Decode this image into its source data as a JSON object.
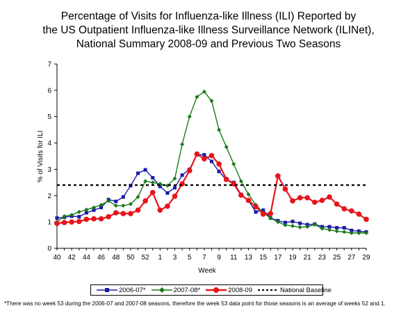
{
  "title_lines": [
    "Percentage of Visits for Influenza-like Illness (ILI) Reported by",
    "the US Outpatient Influenza-like Illness Surveillance Network (ILINet),",
    "National Summary 2008-09 and Previous Two Seasons"
  ],
  "footnote": "*There was no week 53 during the 2006-07 and 2007-08 seasons, therefore the week 53 data point for those seasons is an average of weeks 52 and 1.",
  "chart_data": {
    "type": "line",
    "title": "Percentage of Visits for Influenza-like Illness (ILI) Reported by the US Outpatient Influenza-like Illness Surveillance Network (ILINet), National Summary 2008-09 and Previous Two Seasons",
    "xlabel": "Week",
    "ylabel": "% of Visits for ILI",
    "ylim": [
      0,
      7
    ],
    "yticks": [
      0,
      1,
      2,
      3,
      4,
      5,
      6,
      7
    ],
    "x": [
      40,
      41,
      42,
      43,
      44,
      45,
      46,
      47,
      48,
      49,
      50,
      51,
      52,
      53,
      1,
      2,
      3,
      4,
      5,
      6,
      7,
      8,
      9,
      10,
      11,
      12,
      13,
      14,
      15,
      16,
      17,
      18,
      19,
      20,
      21,
      22,
      23,
      24,
      25,
      26,
      27,
      28,
      29
    ],
    "xtick_labels": [
      "40",
      "42",
      "44",
      "46",
      "48",
      "50",
      "52",
      "1",
      "3",
      "5",
      "7",
      "9",
      "11",
      "13",
      "15",
      "17",
      "19",
      "21",
      "23",
      "25",
      "27",
      "29"
    ],
    "grid": false,
    "legend_position": "bottom",
    "series": [
      {
        "name": "2006-07*",
        "color": "#1a1aa6",
        "marker": "square",
        "values": [
          1.15,
          1.18,
          1.22,
          1.2,
          1.35,
          1.45,
          1.55,
          1.85,
          1.78,
          1.95,
          2.38,
          2.85,
          2.98,
          2.68,
          2.35,
          2.1,
          2.3,
          2.78,
          3.0,
          3.55,
          3.55,
          3.3,
          2.92,
          2.6,
          2.5,
          2.05,
          1.82,
          1.38,
          1.45,
          1.15,
          1.05,
          0.98,
          1.02,
          0.95,
          0.9,
          0.92,
          0.82,
          0.82,
          0.78,
          0.78,
          0.68,
          0.65,
          0.62
        ]
      },
      {
        "name": "2007-08*",
        "color": "#1a7a1a",
        "marker": "diamond",
        "values": [
          1.0,
          1.22,
          1.27,
          1.38,
          1.47,
          1.55,
          1.65,
          1.8,
          1.62,
          1.62,
          1.68,
          1.95,
          2.55,
          2.5,
          2.45,
          2.38,
          2.65,
          3.95,
          5.0,
          5.75,
          5.95,
          5.6,
          4.5,
          3.85,
          3.2,
          2.55,
          2.05,
          1.65,
          1.35,
          1.15,
          1.0,
          0.88,
          0.85,
          0.8,
          0.82,
          0.9,
          0.75,
          0.7,
          0.65,
          0.62,
          0.58,
          0.58,
          0.58
        ]
      },
      {
        "name": "2008-09",
        "color": "#e8141a",
        "marker": "circle",
        "values": [
          0.95,
          0.98,
          1.0,
          1.02,
          1.1,
          1.12,
          1.12,
          1.2,
          1.35,
          1.32,
          1.32,
          1.45,
          1.8,
          2.12,
          1.45,
          1.6,
          1.98,
          2.45,
          2.95,
          3.58,
          3.4,
          3.52,
          3.2,
          2.62,
          2.45,
          2.02,
          1.82,
          1.58,
          1.3,
          1.32,
          2.75,
          2.25,
          1.8,
          1.92,
          1.92,
          1.75,
          1.82,
          1.95,
          1.68,
          1.5,
          1.42,
          1.3,
          1.1
        ]
      },
      {
        "name": "National Baseline",
        "color": "#000000",
        "style": "dashed",
        "values": [
          2.4,
          2.4,
          2.4,
          2.4,
          2.4,
          2.4,
          2.4,
          2.4,
          2.4,
          2.4,
          2.4,
          2.4,
          2.4,
          2.4,
          2.4,
          2.4,
          2.4,
          2.4,
          2.4,
          2.4,
          2.4,
          2.4,
          2.4,
          2.4,
          2.4,
          2.4,
          2.4,
          2.4,
          2.4,
          2.4,
          2.4,
          2.4,
          2.4,
          2.4,
          2.4,
          2.4,
          2.4,
          2.4,
          2.4,
          2.4,
          2.4,
          2.4,
          2.4
        ]
      }
    ]
  }
}
